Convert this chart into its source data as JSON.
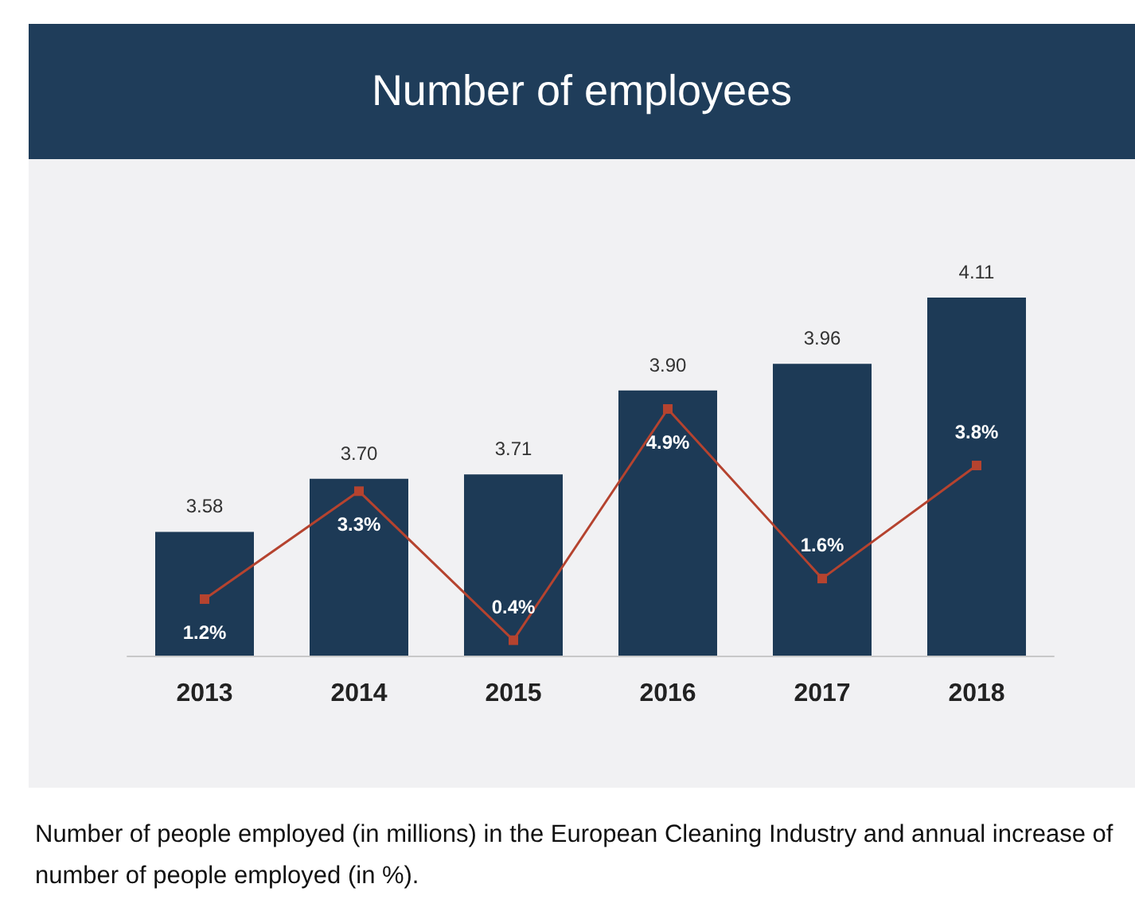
{
  "chart_data": {
    "type": "bar",
    "title": "Number of employees",
    "categories": [
      "2013",
      "2014",
      "2015",
      "2016",
      "2017",
      "2018"
    ],
    "series": [
      {
        "type": "bar",
        "color": "#1d3a56",
        "values": [
          3.58,
          3.7,
          3.71,
          3.9,
          3.96,
          4.11
        ],
        "value_labels": [
          "3.58",
          "3.70",
          "3.71",
          "3.90",
          "3.96",
          "4.11"
        ]
      },
      {
        "type": "line",
        "axis": "y2",
        "color": "#b5432f",
        "values": [
          1.2,
          3.3,
          0.4,
          4.9,
          1.6,
          3.8
        ],
        "value_labels": [
          "1.2%",
          "3.3%",
          "0.4%",
          "4.9%",
          "1.6%",
          "3.8%"
        ]
      }
    ],
    "ylim": [
      3.3,
      4.11
    ],
    "y2lim": [
      0.1,
      4.9
    ],
    "tick_labels": "x",
    "marker": "square",
    "annotations": [
      "Number of people employed (in millions) in the European Cleaning Industry and annual increase of number of people employed (in %)."
    ]
  }
}
